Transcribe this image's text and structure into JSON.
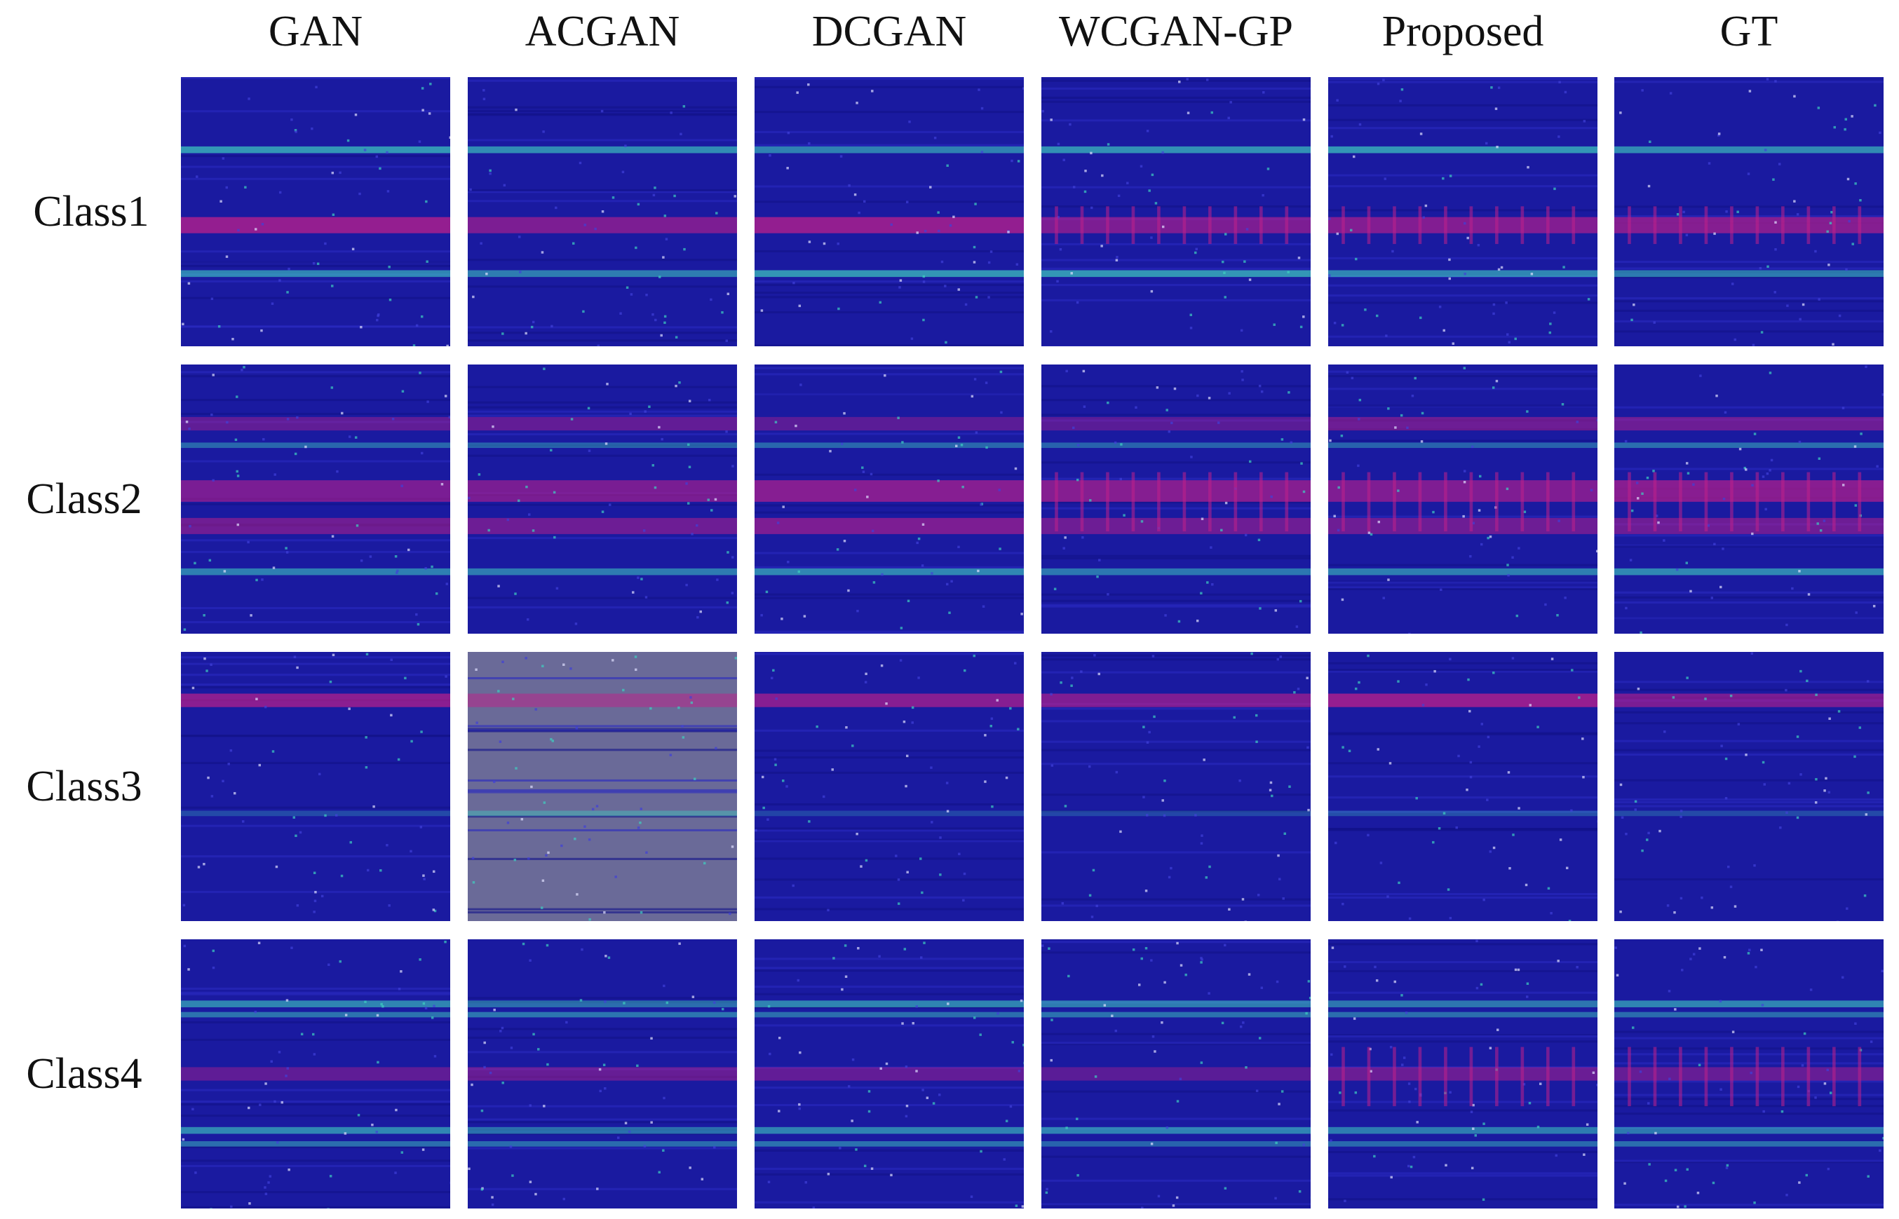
{
  "columns": [
    "GAN",
    "ACGAN",
    "DCGAN",
    "WCGAN-GP",
    "Proposed",
    "GT"
  ],
  "rows": [
    "Class1",
    "Class2",
    "Class3",
    "Class4"
  ],
  "colors": {
    "background_blue": "#1a1aa0",
    "band_magenta": "#c0208a",
    "band_cyan": "#3fd0c0",
    "acgan_class3_gray": "#6a6a98"
  }
}
